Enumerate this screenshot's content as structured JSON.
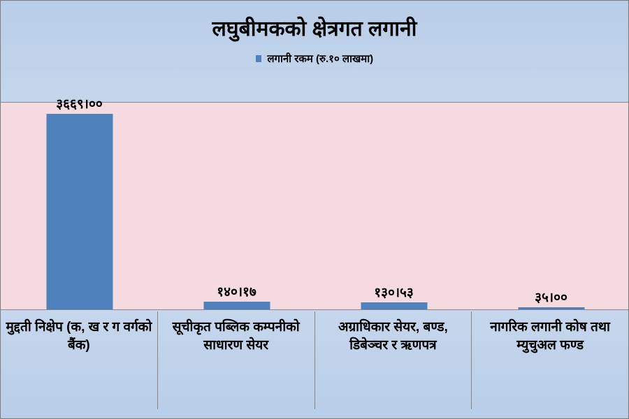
{
  "chart": {
    "type": "bar",
    "title": "लघुबीमकको क्षेत्रगत लगानी",
    "title_fontsize": 30,
    "legend": {
      "label": "लगानी रकम (रु.१० लाखमा)",
      "marker_color": "#4f81bd",
      "fontsize": 15
    },
    "plot_background_color": "#f5dbe0",
    "bar_color": "#4f81bd",
    "data_label_fontsize": 19,
    "axis_label_fontsize": 19,
    "max_value": 3669.0,
    "bars": [
      {
        "category": "मुद्दती निक्षेप (क, ख र ग वर्गको बैंक)",
        "value": 3669.0,
        "display_value": "३६६९।००"
      },
      {
        "category": "सूचीकृत पब्लिक कम्पनीको साधारण सेयर",
        "value": 140.17,
        "display_value": "१४०।१७"
      },
      {
        "category": "अग्राधिकार सेयर, बण्ड, डिबेञ्चर र ऋणपत्र",
        "value": 130.53,
        "display_value": "१३०।५३"
      },
      {
        "category": "नागरिक लगानी कोष तथा म्युचुअल फण्ड",
        "value": 35.0,
        "display_value": "३५।००"
      }
    ]
  }
}
